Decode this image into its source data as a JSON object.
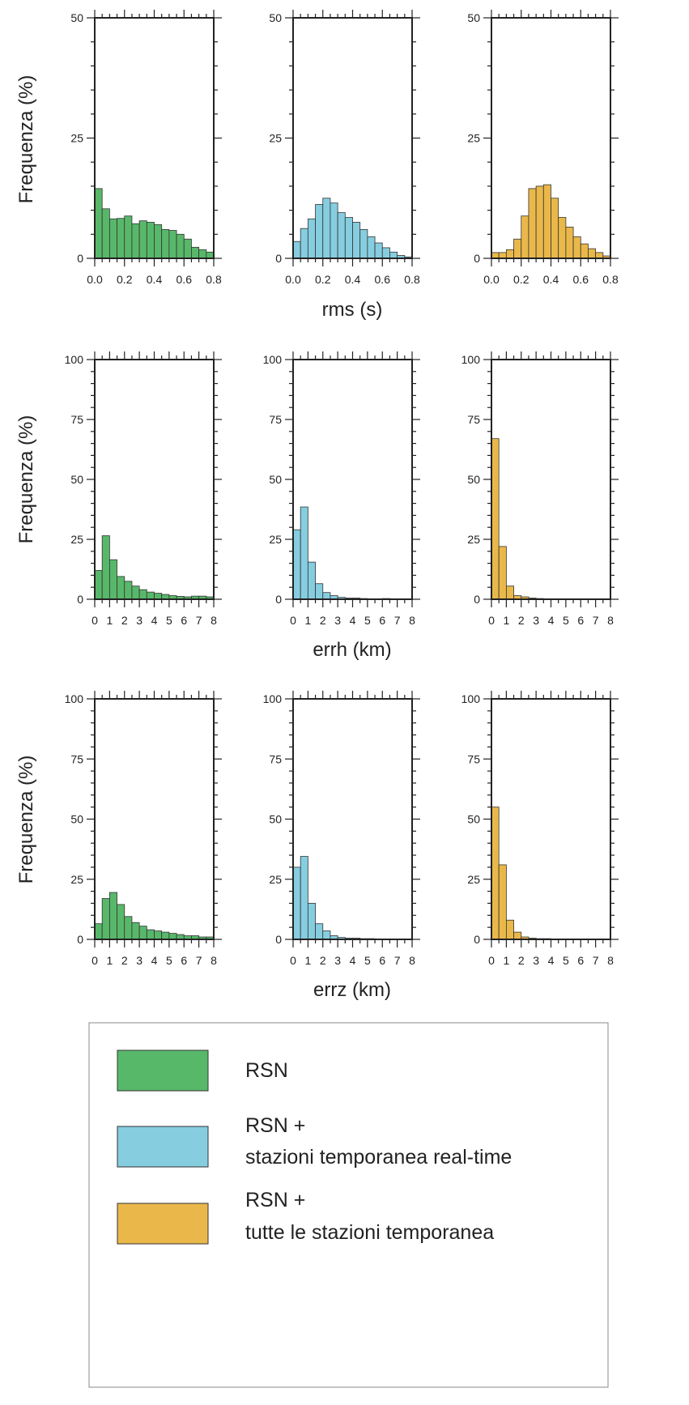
{
  "colors": {
    "green": "#58b86a",
    "blue": "#86cde0",
    "orange": "#eab84a",
    "bar_edge": "#333333",
    "axis": "#222222"
  },
  "figure": {
    "row_labels": {
      "ylabel": "Frequenza (%)",
      "xlabels": [
        "rms (s)",
        "errh (km)",
        "errz (km)"
      ]
    }
  },
  "legend": {
    "entries": [
      {
        "color_key": "green",
        "line1": "RSN",
        "line2": ""
      },
      {
        "color_key": "blue",
        "line1": "RSN +",
        "line2": "stazioni temporanea real-time"
      },
      {
        "color_key": "orange",
        "line1": "RSN +",
        "line2": "tutte le stazioni temporanea"
      }
    ]
  },
  "chart_data": [
    {
      "type": "bar",
      "row": 0,
      "col": 0,
      "color_key": "green",
      "xlim": [
        0,
        0.8
      ],
      "ylim": [
        0,
        50
      ],
      "xticks": [
        "0.0",
        "0.2",
        "0.4",
        "0.6",
        "0.8"
      ],
      "yticks": [
        "0",
        "25",
        "50"
      ],
      "bin_width": 0.05,
      "values": [
        14.5,
        10.3,
        8.2,
        8.3,
        8.8,
        7.2,
        7.8,
        7.5,
        7.0,
        6.0,
        5.8,
        5.0,
        4.0,
        2.3,
        1.8,
        1.3
      ]
    },
    {
      "type": "bar",
      "row": 0,
      "col": 1,
      "color_key": "blue",
      "xlim": [
        0,
        0.8
      ],
      "ylim": [
        0,
        50
      ],
      "xticks": [
        "0.0",
        "0.2",
        "0.4",
        "0.6",
        "0.8"
      ],
      "yticks": [
        "0",
        "25",
        "50"
      ],
      "bin_width": 0.05,
      "values": [
        3.5,
        6.2,
        8.2,
        11.2,
        12.5,
        11.5,
        9.5,
        8.5,
        7.5,
        6.0,
        4.5,
        3.2,
        2.2,
        1.3,
        0.6,
        0.3
      ]
    },
    {
      "type": "bar",
      "row": 0,
      "col": 2,
      "color_key": "orange",
      "xlim": [
        0,
        0.8
      ],
      "ylim": [
        0,
        50
      ],
      "xticks": [
        "0.0",
        "0.2",
        "0.4",
        "0.6",
        "0.8"
      ],
      "yticks": [
        "0",
        "25",
        "50"
      ],
      "bin_width": 0.05,
      "values": [
        1.2,
        1.2,
        1.8,
        4.0,
        8.8,
        14.5,
        15.0,
        15.3,
        12.5,
        8.5,
        6.5,
        4.5,
        3.0,
        2.0,
        1.2,
        0.5
      ]
    },
    {
      "type": "bar",
      "row": 1,
      "col": 0,
      "color_key": "green",
      "xlim": [
        0,
        8
      ],
      "ylim": [
        0,
        100
      ],
      "xticks": [
        "0",
        "1",
        "2",
        "3",
        "4",
        "5",
        "6",
        "7",
        "8"
      ],
      "yticks": [
        "0",
        "25",
        "50",
        "75",
        "100"
      ],
      "bin_width": 0.5,
      "values": [
        12.0,
        26.5,
        16.5,
        9.5,
        7.5,
        5.5,
        4.0,
        3.0,
        2.5,
        2.0,
        1.5,
        1.2,
        1.0,
        1.3,
        1.3,
        1.0
      ]
    },
    {
      "type": "bar",
      "row": 1,
      "col": 1,
      "color_key": "blue",
      "xlim": [
        0,
        8
      ],
      "ylim": [
        0,
        100
      ],
      "xticks": [
        "0",
        "1",
        "2",
        "3",
        "4",
        "5",
        "6",
        "7",
        "8"
      ],
      "yticks": [
        "0",
        "25",
        "50",
        "75",
        "100"
      ],
      "bin_width": 0.5,
      "values": [
        29.0,
        38.5,
        15.5,
        6.5,
        2.8,
        1.5,
        0.8,
        0.5,
        0.5,
        0.3,
        0.2,
        0.2,
        0.3,
        0.2,
        0.2,
        0.1
      ]
    },
    {
      "type": "bar",
      "row": 1,
      "col": 2,
      "color_key": "orange",
      "xlim": [
        0,
        8
      ],
      "ylim": [
        0,
        100
      ],
      "xticks": [
        "0",
        "1",
        "2",
        "3",
        "4",
        "5",
        "6",
        "7",
        "8"
      ],
      "yticks": [
        "0",
        "25",
        "50",
        "75",
        "100"
      ],
      "bin_width": 0.5,
      "values": [
        67.0,
        22.0,
        5.5,
        1.5,
        1.0,
        0.5,
        0.3,
        0.2,
        0.2,
        0.2,
        0.1,
        0.1,
        0.1,
        0.1,
        0.1,
        0.1
      ]
    },
    {
      "type": "bar",
      "row": 2,
      "col": 0,
      "color_key": "green",
      "xlim": [
        0,
        8
      ],
      "ylim": [
        0,
        100
      ],
      "xticks": [
        "0",
        "1",
        "2",
        "3",
        "4",
        "5",
        "6",
        "7",
        "8"
      ],
      "yticks": [
        "0",
        "25",
        "50",
        "75",
        "100"
      ],
      "bin_width": 0.5,
      "values": [
        6.5,
        17.0,
        19.5,
        14.5,
        9.5,
        7.0,
        5.5,
        4.0,
        3.5,
        3.0,
        2.5,
        2.0,
        1.5,
        1.5,
        1.0,
        1.0
      ]
    },
    {
      "type": "bar",
      "row": 2,
      "col": 1,
      "color_key": "blue",
      "xlim": [
        0,
        8
      ],
      "ylim": [
        0,
        100
      ],
      "xticks": [
        "0",
        "1",
        "2",
        "3",
        "4",
        "5",
        "6",
        "7",
        "8"
      ],
      "yticks": [
        "0",
        "25",
        "50",
        "75",
        "100"
      ],
      "bin_width": 0.5,
      "values": [
        30.0,
        34.5,
        15.0,
        6.5,
        3.5,
        1.5,
        0.8,
        0.5,
        0.5,
        0.3,
        0.3,
        0.2,
        0.2,
        0.2,
        0.1,
        0.1
      ]
    },
    {
      "type": "bar",
      "row": 2,
      "col": 2,
      "color_key": "orange",
      "xlim": [
        0,
        8
      ],
      "ylim": [
        0,
        100
      ],
      "xticks": [
        "0",
        "1",
        "2",
        "3",
        "4",
        "5",
        "6",
        "7",
        "8"
      ],
      "yticks": [
        "0",
        "25",
        "50",
        "75",
        "100"
      ],
      "bin_width": 0.5,
      "values": [
        55.0,
        31.0,
        8.0,
        3.0,
        1.0,
        0.5,
        0.3,
        0.3,
        0.2,
        0.2,
        0.1,
        0.1,
        0.1,
        0.1,
        0.1,
        0.1
      ]
    }
  ]
}
